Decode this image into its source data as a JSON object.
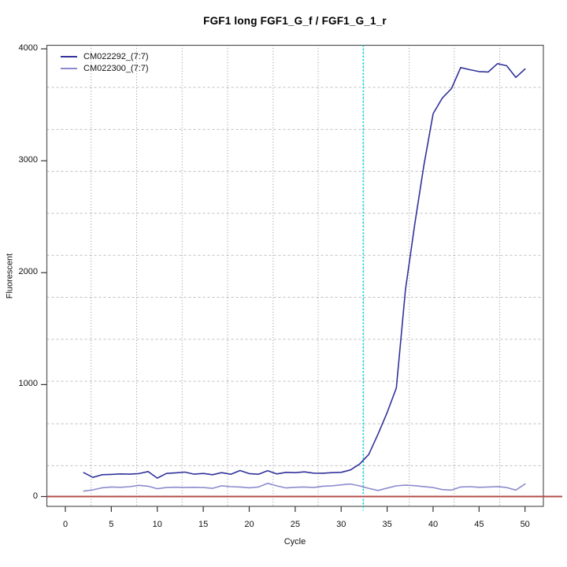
{
  "title": "FGF1 long FGF1_G_f / FGF1_G_1_r",
  "axes": {
    "x_label": "Cycle",
    "y_label": "Fluorescent",
    "x_ticks": [
      0,
      5,
      10,
      15,
      20,
      25,
      30,
      35,
      40,
      45,
      50
    ],
    "y_ticks": [
      0,
      1000,
      2000,
      3000,
      4000
    ]
  },
  "style": {
    "background": "#ffffff",
    "box_color": "#555555",
    "tick_color": "#333333",
    "grid_vertical_color": "#909090",
    "grid_horizontal_color": "#bfbfbf",
    "crossing_line_color": "#00dcdc",
    "baseline_color": "#b44c4c"
  },
  "chart_data": {
    "type": "line",
    "title": "FGF1 long FGF1_G_f / FGF1_G_1_r",
    "xlabel": "Cycle",
    "ylabel": "Fluorescent",
    "xlim": [
      -2.1,
      52.7
    ],
    "ylim": [
      -95,
      4040
    ],
    "grid": "dotted",
    "legend_position": "top-left",
    "grid_x": [
      2.8,
      7.75,
      12.7,
      17.65,
      22.6,
      27.5,
      32.45,
      37.4,
      42.3,
      47.25
    ],
    "grid_y": [
      275,
      650,
      1030,
      1405,
      1780,
      2155,
      2530,
      2905,
      3280,
      3655
    ],
    "crossing_line_x": 32.4,
    "baseline_y": 0,
    "series": [
      {
        "name": "CM022292_(7:7)",
        "color": "#32329b",
        "points": [
          [
            2,
            213
          ],
          [
            3,
            171
          ],
          [
            4,
            195
          ],
          [
            5,
            198
          ],
          [
            6,
            202
          ],
          [
            7,
            200
          ],
          [
            8,
            205
          ],
          [
            9,
            223
          ],
          [
            10,
            165
          ],
          [
            11,
            206
          ],
          [
            12,
            212
          ],
          [
            13,
            218
          ],
          [
            14,
            200
          ],
          [
            15,
            206
          ],
          [
            16,
            195
          ],
          [
            17,
            213
          ],
          [
            18,
            199
          ],
          [
            19,
            232
          ],
          [
            20,
            205
          ],
          [
            21,
            199
          ],
          [
            22,
            230
          ],
          [
            23,
            202
          ],
          [
            24,
            216
          ],
          [
            25,
            213
          ],
          [
            26,
            220
          ],
          [
            27,
            209
          ],
          [
            28,
            208
          ],
          [
            29,
            213
          ],
          [
            30,
            216
          ],
          [
            31,
            237
          ],
          [
            32,
            290
          ],
          [
            33,
            375
          ],
          [
            34,
            555
          ],
          [
            35,
            750
          ],
          [
            36,
            970
          ],
          [
            37,
            1850
          ],
          [
            38,
            2430
          ],
          [
            39,
            2960
          ],
          [
            40,
            3420
          ],
          [
            41,
            3560
          ],
          [
            42,
            3645
          ],
          [
            43,
            3833
          ],
          [
            44,
            3814
          ],
          [
            45,
            3797
          ],
          [
            46,
            3793
          ],
          [
            47,
            3868
          ],
          [
            48,
            3849
          ],
          [
            49,
            3745
          ],
          [
            50,
            3820
          ]
        ]
      },
      {
        "name": "CM022300_(7:7)",
        "color": "#8c8ccd",
        "points": [
          [
            2,
            48
          ],
          [
            3,
            60
          ],
          [
            4,
            78
          ],
          [
            5,
            85
          ],
          [
            6,
            82
          ],
          [
            7,
            88
          ],
          [
            8,
            100
          ],
          [
            9,
            92
          ],
          [
            10,
            70
          ],
          [
            11,
            80
          ],
          [
            12,
            83
          ],
          [
            13,
            80
          ],
          [
            14,
            82
          ],
          [
            15,
            80
          ],
          [
            16,
            73
          ],
          [
            17,
            96
          ],
          [
            18,
            88
          ],
          [
            19,
            85
          ],
          [
            20,
            78
          ],
          [
            21,
            85
          ],
          [
            22,
            118
          ],
          [
            23,
            95
          ],
          [
            24,
            77
          ],
          [
            25,
            82
          ],
          [
            26,
            85
          ],
          [
            27,
            80
          ],
          [
            28,
            92
          ],
          [
            29,
            96
          ],
          [
            30,
            104
          ],
          [
            31,
            112
          ],
          [
            32,
            95
          ],
          [
            33,
            73
          ],
          [
            34,
            54
          ],
          [
            35,
            75
          ],
          [
            36,
            96
          ],
          [
            37,
            101
          ],
          [
            38,
            97
          ],
          [
            39,
            89
          ],
          [
            40,
            80
          ],
          [
            41,
            62
          ],
          [
            42,
            58
          ],
          [
            43,
            85
          ],
          [
            44,
            88
          ],
          [
            45,
            82
          ],
          [
            46,
            85
          ],
          [
            47,
            89
          ],
          [
            48,
            80
          ],
          [
            49,
            58
          ],
          [
            50,
            112
          ]
        ]
      }
    ]
  }
}
